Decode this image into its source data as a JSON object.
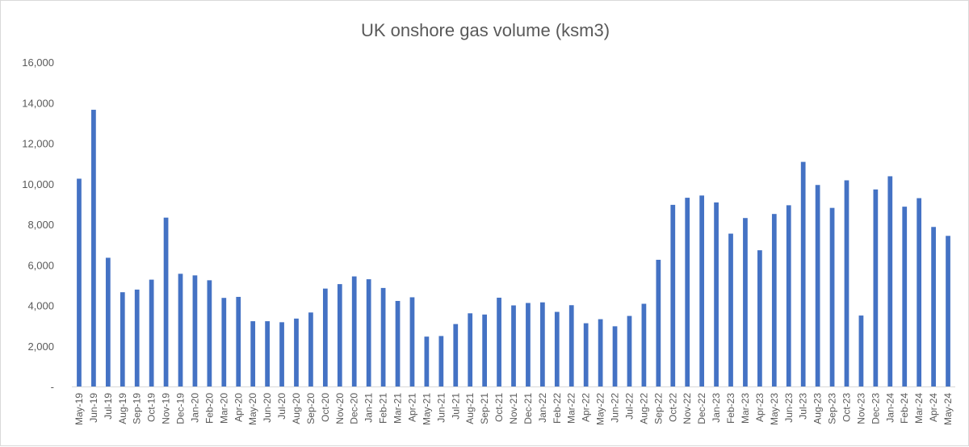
{
  "chart_data": {
    "type": "bar",
    "title": "UK onshore gas volume (ksm3)",
    "xlabel": "",
    "ylabel": "",
    "ylim": [
      0,
      16000
    ],
    "yticks": [
      0,
      2000,
      4000,
      6000,
      8000,
      10000,
      12000,
      14000,
      16000
    ],
    "ytick_labels": [
      "-",
      "2,000",
      "4,000",
      "6,000",
      "8,000",
      "10,000",
      "12,000",
      "14,000",
      "16,000"
    ],
    "grid": false,
    "legend": "none",
    "bar_color": "#4472c4",
    "categories": [
      "May-19",
      "Jun-19",
      "Jul-19",
      "Aug-19",
      "Sep-19",
      "Oct-19",
      "Nov-19",
      "Dec-19",
      "Jan-20",
      "Feb-20",
      "Mar-20",
      "Apr-20",
      "May-20",
      "Jun-20",
      "Jul-20",
      "Aug-20",
      "Sep-20",
      "Oct-20",
      "Nov-20",
      "Dec-20",
      "Jan-21",
      "Feb-21",
      "Mar-21",
      "Apr-21",
      "May-21",
      "Jun-21",
      "Jul-21",
      "Aug-21",
      "Sep-21",
      "Oct-21",
      "Nov-21",
      "Dec-21",
      "Jan-22",
      "Feb-22",
      "Mar-22",
      "Apr-22",
      "May-22",
      "Jun-22",
      "Jul-22",
      "Aug-22",
      "Sep-22",
      "Oct-22",
      "Nov-22",
      "Dec-22",
      "Jan-23",
      "Feb-23",
      "Mar-23",
      "Apr-23",
      "May-23",
      "Jun-23",
      "Jul-23",
      "Aug-23",
      "Sep-23",
      "Oct-23",
      "Nov-23",
      "Dec-23",
      "Jan-24",
      "Feb-24",
      "Mar-24",
      "Apr-24",
      "May-24"
    ],
    "values": [
      10250,
      13650,
      6350,
      4650,
      4780,
      5270,
      8330,
      5560,
      5480,
      5240,
      4370,
      4420,
      3220,
      3220,
      3170,
      3350,
      3650,
      4830,
      5050,
      5430,
      5290,
      4860,
      4220,
      4400,
      2460,
      2490,
      3080,
      3610,
      3550,
      4380,
      4000,
      4120,
      4150,
      3680,
      4010,
      3120,
      3320,
      2970,
      3480,
      4080,
      6250,
      8960,
      9310,
      9420,
      9080,
      7540,
      8310,
      6720,
      8510,
      8940,
      11080,
      9940,
      8810,
      10170,
      3500,
      9720,
      10370,
      8870,
      9290,
      7870,
      7430
    ]
  }
}
